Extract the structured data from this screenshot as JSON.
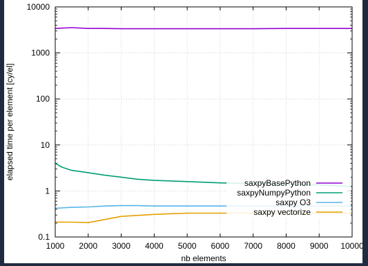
{
  "chart_data": {
    "type": "line",
    "title": "",
    "xlabel": "nb elements",
    "ylabel": "elapsed time per element [cy/el]",
    "xlim": [
      1000,
      10000
    ],
    "ylim": [
      0.1,
      10000
    ],
    "yscale": "log",
    "grid": true,
    "legend_position": "bottom-right",
    "x_ticks": [
      "1000",
      "2000",
      "3000",
      "4000",
      "5000",
      "6000",
      "7000",
      "8000",
      "9000",
      "10000"
    ],
    "y_ticks": [
      "0.1",
      "1",
      "10",
      "100",
      "1000",
      "10000"
    ],
    "series": [
      {
        "name": "saxpyBasePython",
        "color": "#9400d3",
        "x": [
          1000,
          1500,
          2000,
          2500,
          3000,
          4000,
          5000,
          6000,
          7000,
          8000,
          9000,
          10000
        ],
        "y": [
          3400,
          3550,
          3400,
          3400,
          3350,
          3350,
          3350,
          3350,
          3350,
          3400,
          3400,
          3400
        ]
      },
      {
        "name": "saxpyNumpyPython",
        "color": "#009e73",
        "x": [
          1000,
          1200,
          1500,
          2000,
          2500,
          3000,
          3500,
          4000,
          5000,
          6000,
          7000,
          8000,
          9000,
          10000
        ],
        "y": [
          4.0,
          3.3,
          2.8,
          2.5,
          2.2,
          2.0,
          1.8,
          1.7,
          1.6,
          1.5,
          1.45,
          1.4,
          1.35,
          1.25
        ]
      },
      {
        "name": "saxpy O3",
        "color": "#56b4e9",
        "x": [
          1000,
          1500,
          2000,
          2500,
          3000,
          3500,
          4000,
          5000,
          6000,
          7000,
          8000,
          9000,
          10000
        ],
        "y": [
          0.42,
          0.44,
          0.45,
          0.47,
          0.48,
          0.48,
          0.47,
          0.47,
          0.47,
          0.47,
          0.47,
          0.47,
          0.47
        ]
      },
      {
        "name": "saxpy vectorize",
        "color": "#e69f00",
        "x": [
          1000,
          1500,
          2000,
          2500,
          3000,
          4000,
          5000,
          6000,
          7000,
          8000,
          9000,
          10000
        ],
        "y": [
          0.21,
          0.21,
          0.205,
          0.24,
          0.28,
          0.31,
          0.33,
          0.33,
          0.33,
          0.33,
          0.33,
          0.33
        ]
      }
    ]
  }
}
